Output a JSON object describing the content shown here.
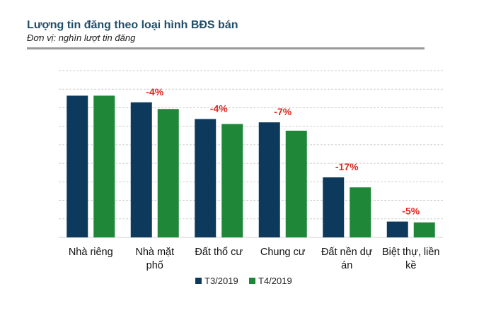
{
  "chart_data": {
    "type": "bar",
    "title": "Lượng tin đăng theo loại hình BĐS bán",
    "subtitle": "Đơn vị: nghìn lượt tin đăng",
    "categories": [
      [
        "Nhà riêng"
      ],
      [
        "Nhà mặt",
        "phố"
      ],
      [
        "Đất thổ cư"
      ],
      [
        "Chung cư"
      ],
      [
        "Đất nền dự",
        "án"
      ],
      [
        "Biệt thự, liền",
        "kề"
      ]
    ],
    "series": [
      {
        "name": "T3/2019",
        "color": "#0d3a5c",
        "values": [
          8.5,
          8.1,
          7.1,
          6.9,
          3.6,
          0.95
        ]
      },
      {
        "name": "T4/2019",
        "color": "#1e8738",
        "values": [
          8.5,
          7.7,
          6.8,
          6.4,
          3.0,
          0.9
        ]
      }
    ],
    "annotations": [
      "",
      "-4%",
      "-4%",
      "-7%",
      "-17%",
      "-5%"
    ],
    "ylim": [
      0,
      10
    ],
    "grid": true,
    "legend": "bottom"
  }
}
